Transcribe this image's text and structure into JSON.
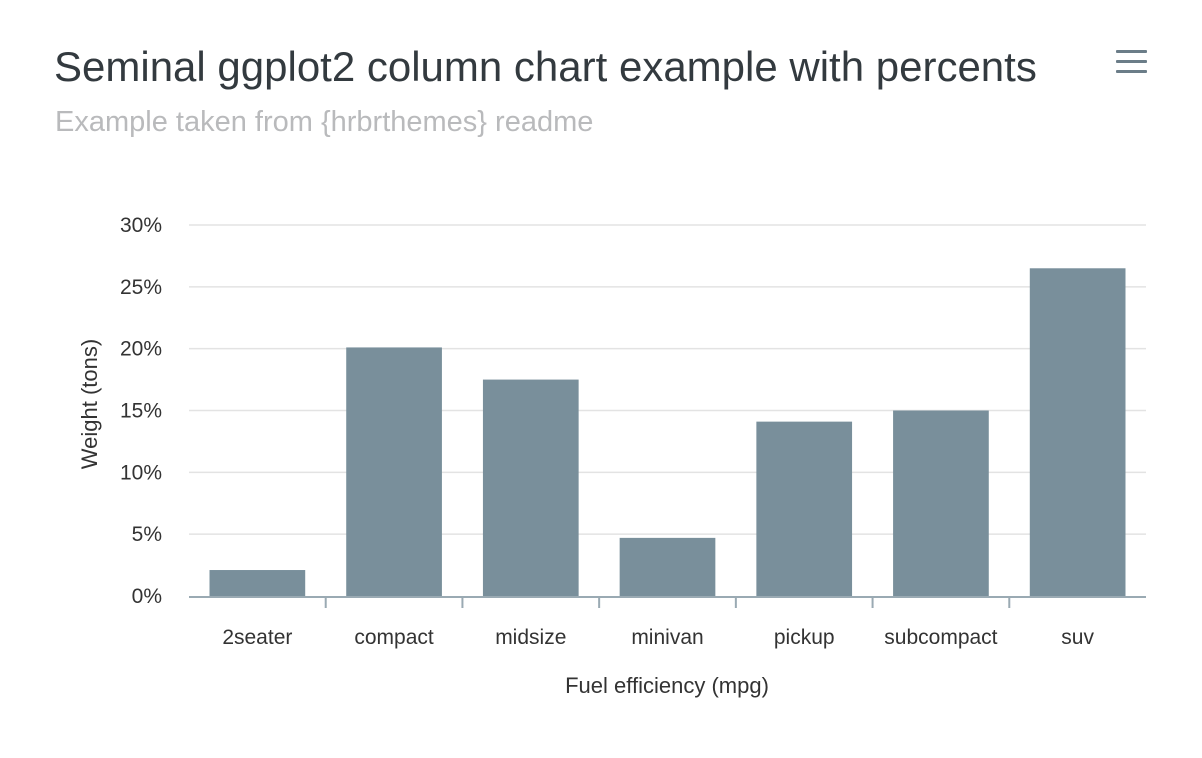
{
  "header": {
    "title": "Seminal ggplot2 column chart example with percents",
    "subtitle": "Example taken from {hrbrthemes} readme",
    "menu_icon": "hamburger-menu-icon"
  },
  "colors": {
    "bar": "#798f9b",
    "grid": "#e3e3e3",
    "axis": "#9aaab3",
    "title": "#333a3f",
    "subtitle": "#b9babc",
    "menu": "#6b7d88"
  },
  "chart_data": {
    "type": "bar",
    "title": "Seminal ggplot2 column chart example with percents",
    "subtitle": "Example taken from {hrbrthemes} readme",
    "xlabel": "Fuel efficiency (mpg)",
    "ylabel": "Weight (tons)",
    "categories": [
      "2seater",
      "compact",
      "midsize",
      "minivan",
      "pickup",
      "subcompact",
      "suv"
    ],
    "values": [
      2.1,
      20.1,
      17.5,
      4.7,
      14.1,
      15.0,
      26.5
    ],
    "y_ticks": [
      0,
      5,
      10,
      15,
      20,
      25,
      30
    ],
    "y_tick_labels": [
      "0%",
      "5%",
      "10%",
      "15%",
      "20%",
      "25%",
      "30%"
    ],
    "ylim": [
      0,
      30
    ],
    "grid": true,
    "legend": "none"
  }
}
